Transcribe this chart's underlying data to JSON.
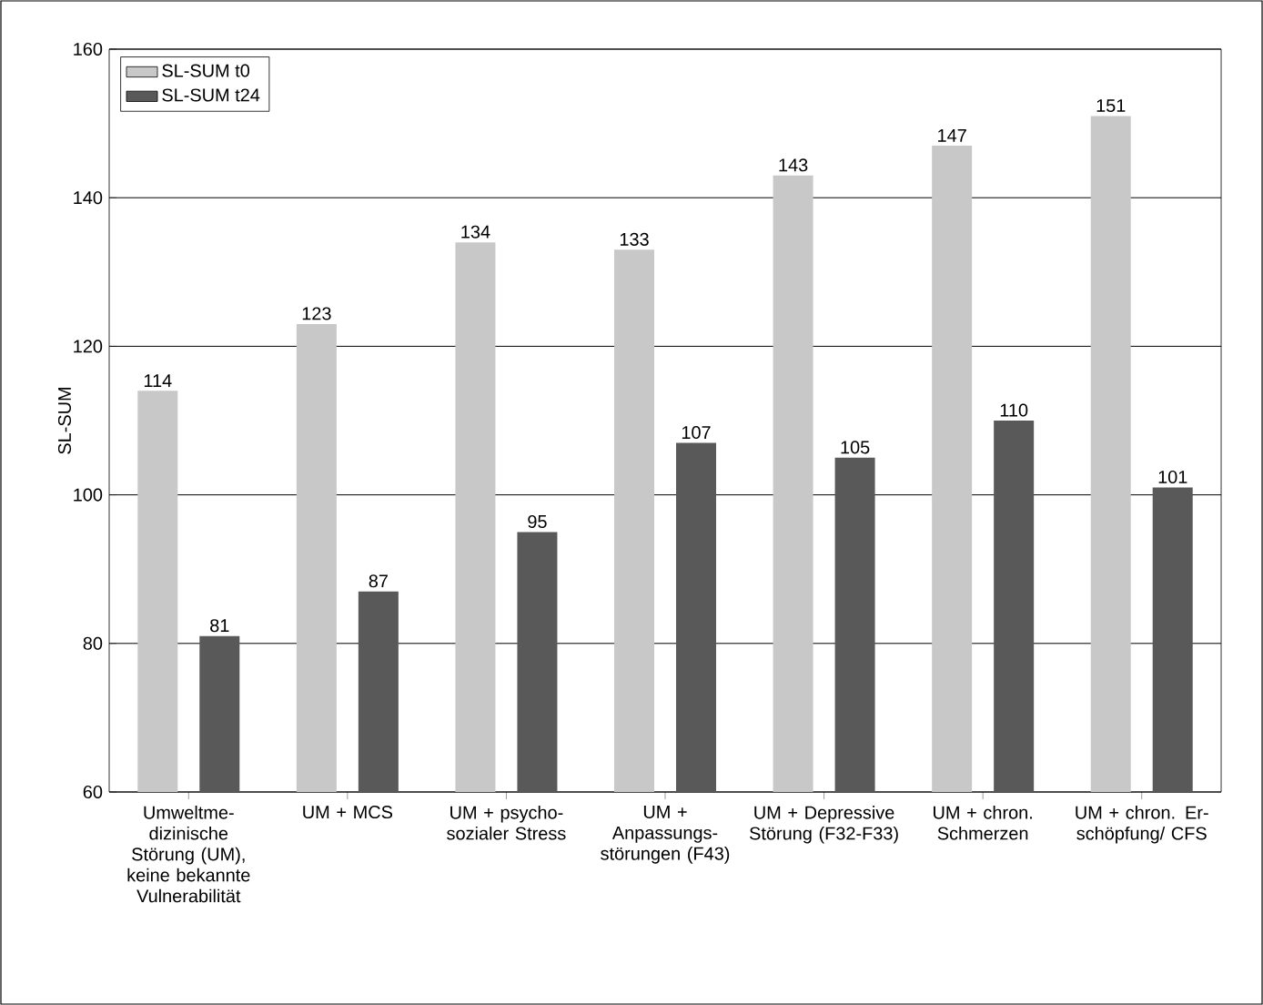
{
  "chart_data": {
    "type": "bar",
    "ylabel": "SL-SUM",
    "categories": [
      "Umweltme-dizinische Störung (UM), keine bekannte Vulnerabilität",
      "UM + MCS",
      "UM + psycho-sozialer Stress",
      "UM + Anpassungs-störungen (F43)",
      "UM + Depressive Störung (F32-F33)",
      "UM + chron. Schmerzen",
      "UM + chron. Er-schöpfung/ CFS"
    ],
    "series": [
      {
        "name": "SL-SUM t0",
        "color": "#c8c8c8",
        "values": [
          114,
          123,
          134,
          133,
          143,
          147,
          151
        ]
      },
      {
        "name": "SL-SUM t24",
        "color": "#595959",
        "values": [
          81,
          87,
          95,
          107,
          105,
          110,
          101
        ]
      }
    ],
    "ylim": [
      60,
      160
    ],
    "yticks": [
      60,
      80,
      100,
      120,
      140,
      160
    ],
    "grid": "y",
    "legend": "top left",
    "data_labels": true
  }
}
